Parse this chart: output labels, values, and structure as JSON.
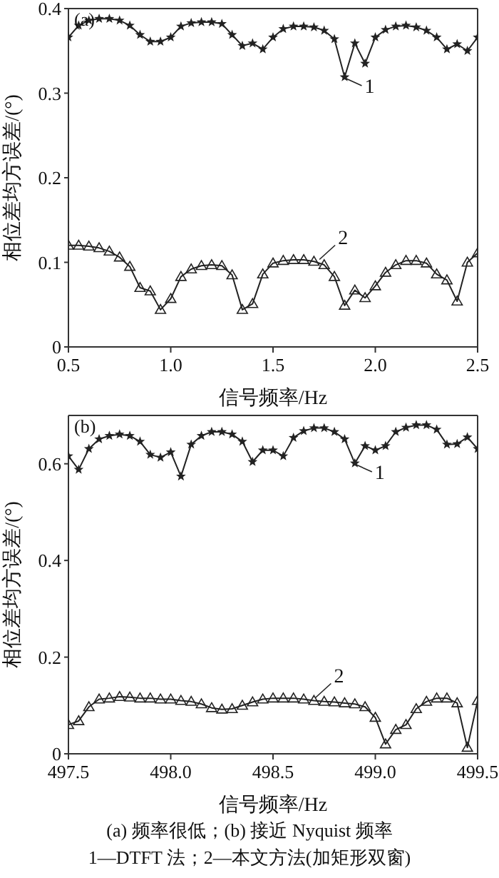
{
  "chart_data": [
    {
      "type": "line",
      "xlabel": "信号频率/Hz",
      "ylabel": "相位差均方误差/(°)",
      "xlim": [
        0.5,
        2.5
      ],
      "ylim": [
        0,
        0.4
      ],
      "xticks": [
        0.5,
        {
          "value": 1,
          "label": "1.0"
        },
        1.5,
        {
          "value": 2,
          "label": "2.0"
        },
        2.5
      ],
      "yticks": [
        0,
        0.1,
        0.2,
        0.3,
        0.4
      ],
      "grid": false,
      "legend": false,
      "line_style": "solid",
      "x": [
        0.5,
        0.55,
        0.6,
        0.65,
        0.7,
        0.75,
        0.8,
        0.85,
        0.9,
        0.95,
        1.0,
        1.05,
        1.1,
        1.15,
        1.2,
        1.25,
        1.3,
        1.35,
        1.4,
        1.45,
        1.5,
        1.55,
        1.6,
        1.65,
        1.7,
        1.75,
        1.8,
        1.85,
        1.9,
        1.95,
        2.0,
        2.05,
        2.1,
        2.15,
        2.2,
        2.25,
        2.3,
        2.35,
        2.4,
        2.45,
        2.5
      ],
      "series": [
        {
          "color": "#222222",
          "marker": "star",
          "values": [
            0.366,
            0.38,
            0.386,
            0.388,
            0.388,
            0.386,
            0.38,
            0.369,
            0.361,
            0.361,
            0.366,
            0.379,
            0.383,
            0.384,
            0.384,
            0.382,
            0.369,
            0.356,
            0.359,
            0.352,
            0.366,
            0.376,
            0.379,
            0.379,
            0.378,
            0.374,
            0.364,
            0.319,
            0.359,
            0.335,
            0.366,
            0.375,
            0.379,
            0.38,
            0.378,
            0.374,
            0.366,
            0.352,
            0.358,
            0.35,
            0.366
          ]
        },
        {
          "color": "#222222",
          "marker": "triangle",
          "values": [
            0.12,
            0.12,
            0.119,
            0.117,
            0.113,
            0.106,
            0.095,
            0.07,
            0.066,
            0.044,
            0.057,
            0.083,
            0.092,
            0.096,
            0.097,
            0.096,
            0.085,
            0.044,
            0.051,
            0.086,
            0.099,
            0.102,
            0.103,
            0.103,
            0.101,
            0.097,
            0.083,
            0.049,
            0.067,
            0.058,
            0.072,
            0.088,
            0.097,
            0.102,
            0.102,
            0.099,
            0.086,
            0.079,
            0.054,
            0.1,
            0.111
          ]
        }
      ],
      "annotations": [
        "(a)",
        {
          "text": "1",
          "x": 1.85,
          "y": 0.319
        },
        {
          "text": "2",
          "x": 1.72,
          "y": 0.1
        }
      ]
    },
    {
      "type": "line",
      "xlabel": "信号频率/Hz",
      "ylabel": "相位差均方误差/(°)",
      "xlim": [
        497.5,
        499.5
      ],
      "ylim": [
        0,
        0.7
      ],
      "xticks": [
        497.5,
        {
          "value": 498,
          "label": "498.0"
        },
        498.5,
        {
          "value": 499,
          "label": "499.0"
        },
        499.5
      ],
      "yticks": [
        0,
        0.2,
        0.4,
        0.6
      ],
      "grid": false,
      "legend": false,
      "line_style": "solid",
      "x": [
        497.5,
        497.55,
        497.6,
        497.65,
        497.7,
        497.75,
        497.8,
        497.85,
        497.9,
        497.95,
        498.0,
        498.05,
        498.1,
        498.15,
        498.2,
        498.25,
        498.3,
        498.35,
        498.4,
        498.45,
        498.5,
        498.55,
        498.6,
        498.65,
        498.7,
        498.75,
        498.8,
        498.85,
        498.9,
        498.95,
        499.0,
        499.05,
        499.1,
        499.15,
        499.2,
        499.25,
        499.3,
        499.35,
        499.4,
        499.45,
        499.5
      ],
      "series": [
        {
          "color": "#222222",
          "marker": "star",
          "values": [
            0.616,
            0.588,
            0.631,
            0.651,
            0.658,
            0.661,
            0.658,
            0.646,
            0.619,
            0.613,
            0.624,
            0.574,
            0.64,
            0.658,
            0.666,
            0.666,
            0.661,
            0.646,
            0.604,
            0.628,
            0.628,
            0.616,
            0.654,
            0.668,
            0.674,
            0.674,
            0.666,
            0.651,
            0.601,
            0.637,
            0.628,
            0.637,
            0.666,
            0.675,
            0.68,
            0.68,
            0.671,
            0.64,
            0.641,
            0.655,
            0.631
          ]
        },
        {
          "color": "#222222",
          "marker": "triangle",
          "values": [
            0.06,
            0.068,
            0.097,
            0.113,
            0.115,
            0.118,
            0.117,
            0.115,
            0.115,
            0.113,
            0.113,
            0.11,
            0.108,
            0.103,
            0.095,
            0.092,
            0.093,
            0.1,
            0.107,
            0.113,
            0.115,
            0.115,
            0.115,
            0.113,
            0.11,
            0.108,
            0.107,
            0.105,
            0.103,
            0.097,
            0.075,
            0.02,
            0.05,
            0.06,
            0.093,
            0.108,
            0.115,
            0.115,
            0.105,
            0.013,
            0.11
          ]
        }
      ],
      "annotations": [
        "(b)",
        {
          "text": "1",
          "x": 498.9,
          "y": 0.601
        },
        {
          "text": "2",
          "x": 498.7,
          "y": 0.11
        },
        "(a) 频率很低；(b) 接近 Nyquist 频率",
        "1—DTFT 法；2—本文方法(加矩形双窗)"
      ]
    }
  ]
}
